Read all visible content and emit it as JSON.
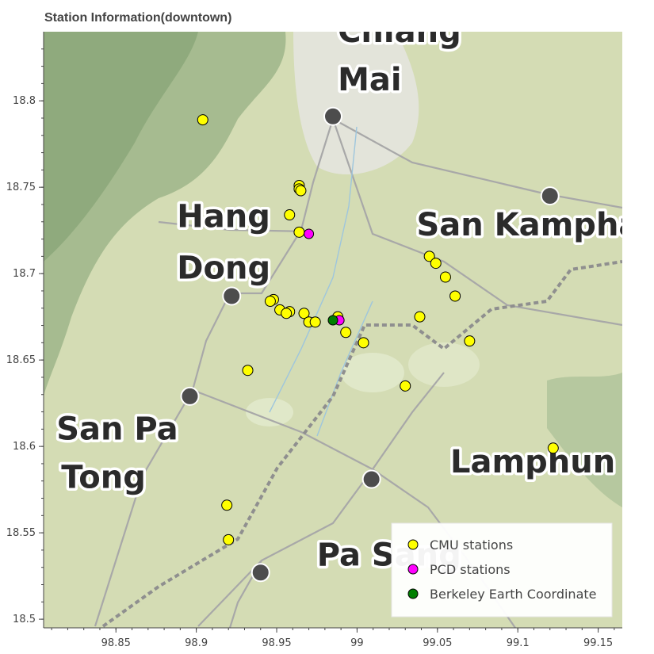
{
  "title": "Station Information(downtown)",
  "chart_data": {
    "type": "scatter",
    "title": "Station Information(downtown)",
    "xlim": [
      98.805,
      99.165
    ],
    "ylim": [
      18.495,
      18.84
    ],
    "x_ticks": [
      "98.85",
      "98.9",
      "98.95",
      "99",
      "99.05",
      "99.1",
      "99.15"
    ],
    "x_tick_values": [
      98.85,
      98.9,
      98.95,
      99.0,
      99.05,
      99.1,
      99.15
    ],
    "y_ticks": [
      "18.5",
      "18.55",
      "18.6",
      "18.65",
      "18.7",
      "18.75",
      "18.8"
    ],
    "y_tick_values": [
      18.5,
      18.55,
      18.6,
      18.65,
      18.7,
      18.75,
      18.8
    ],
    "legend_position": "bottom-right",
    "series": [
      {
        "name": "CMU stations",
        "color": "#ffff00",
        "points": [
          [
            98.904,
            18.789
          ],
          [
            98.964,
            18.751
          ],
          [
            98.964,
            18.749
          ],
          [
            98.965,
            18.748
          ],
          [
            98.958,
            18.734
          ],
          [
            98.964,
            18.724
          ],
          [
            98.948,
            18.685
          ],
          [
            98.946,
            18.684
          ],
          [
            98.952,
            18.679
          ],
          [
            98.958,
            18.678
          ],
          [
            98.956,
            18.677
          ],
          [
            98.967,
            18.677
          ],
          [
            98.97,
            18.672
          ],
          [
            98.974,
            18.672
          ],
          [
            98.988,
            18.675
          ],
          [
            98.993,
            18.666
          ],
          [
            99.004,
            18.66
          ],
          [
            99.039,
            18.675
          ],
          [
            99.03,
            18.635
          ],
          [
            99.07,
            18.661
          ],
          [
            99.045,
            18.71
          ],
          [
            99.049,
            18.706
          ],
          [
            99.055,
            18.698
          ],
          [
            99.061,
            18.687
          ],
          [
            98.932,
            18.644
          ],
          [
            99.122,
            18.599
          ],
          [
            98.919,
            18.566
          ],
          [
            98.92,
            18.546
          ]
        ]
      },
      {
        "name": "PCD stations",
        "color": "#ff00ff",
        "points": [
          [
            98.97,
            18.723
          ],
          [
            98.989,
            18.673
          ]
        ]
      },
      {
        "name": "Berkeley Earth Coordinate",
        "color": "#007f00",
        "points": [
          [
            98.985,
            18.673
          ]
        ]
      }
    ]
  },
  "map": {
    "place_labels": [
      {
        "text": "Chiang",
        "lon": 98.988,
        "lat": 18.834
      },
      {
        "text": "Mai",
        "lon": 98.988,
        "lat": 18.806
      },
      {
        "text": "San Kamphaeng",
        "lon": 99.037,
        "lat": 18.722
      },
      {
        "text": "Hang",
        "lon": 98.888,
        "lat": 18.727
      },
      {
        "text": "Dong",
        "lon": 98.888,
        "lat": 18.697
      },
      {
        "text": "San Pa",
        "lon": 98.813,
        "lat": 18.604
      },
      {
        "text": "Tong",
        "lon": 98.816,
        "lat": 18.576
      },
      {
        "text": "Lamphun",
        "lon": 99.058,
        "lat": 18.585
      },
      {
        "text": "Pa Sang",
        "lon": 98.975,
        "lat": 18.531
      }
    ],
    "town_dots": [
      {
        "lon": 98.985,
        "lat": 18.791
      },
      {
        "lon": 99.12,
        "lat": 18.745
      },
      {
        "lon": 98.922,
        "lat": 18.687
      },
      {
        "lon": 98.896,
        "lat": 18.629
      },
      {
        "lon": 99.009,
        "lat": 18.581
      },
      {
        "lon": 98.94,
        "lat": 18.527
      }
    ]
  }
}
